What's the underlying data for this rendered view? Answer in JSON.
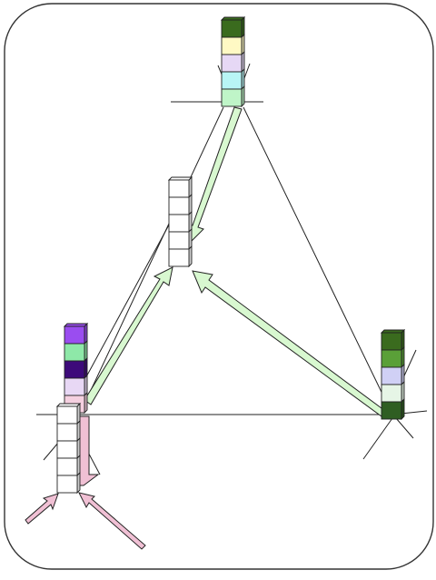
{
  "stacks": [
    {
      "id": "top",
      "cells": [
        "#3a6b1e",
        "#fff9c4",
        "#e6d8f5",
        "#b8f5f5",
        "#bff5c8"
      ]
    },
    {
      "id": "center",
      "cells": [
        "#ffffff",
        "#ffffff",
        "#ffffff",
        "#ffffff",
        "#ffffff"
      ]
    },
    {
      "id": "left",
      "cells": [
        "#9a4df0",
        "#8ee8a8",
        "#3d0a7a",
        "#e8d8f5",
        "#f5d0e0"
      ]
    },
    {
      "id": "bottom",
      "cells": [
        "#ffffff",
        "#ffffff",
        "#ffffff",
        "#ffffff",
        "#ffffff"
      ]
    },
    {
      "id": "right",
      "cells": [
        "#3a6b1e",
        "#5aa038",
        "#d0d0f5",
        "#e6f5e6",
        "#2f5e22"
      ]
    }
  ],
  "colors": {
    "border": "#333333",
    "line": "#222222",
    "green_arrow_fill": "#d8f8d0",
    "pink_arrow_fill": "#f0c0d4",
    "cube_stroke": "#222222"
  }
}
